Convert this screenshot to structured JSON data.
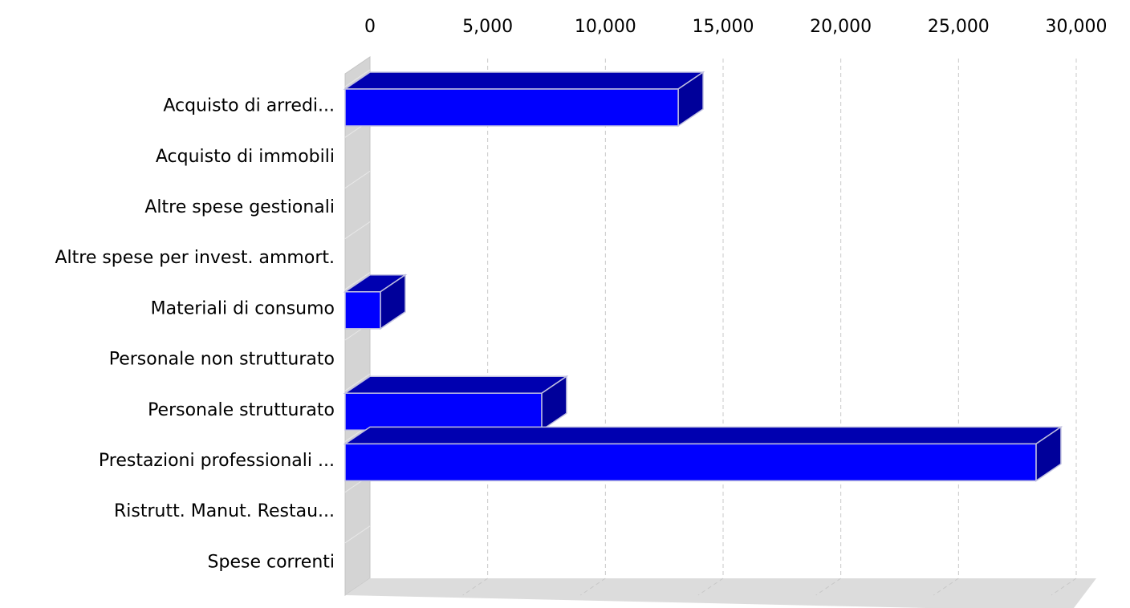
{
  "chart_data": {
    "type": "bar",
    "orientation": "horizontal",
    "style": "3d",
    "title": "",
    "xlabel": "",
    "ylabel": "",
    "categories": [
      "Acquisto di arredi...",
      "Acquisto di immobili",
      "Altre spese gestionali",
      "Altre spese per invest. ammort.",
      "Materiali di consumo",
      "Personale non strutturato",
      "Personale strutturato",
      "Prestazioni professionali ...",
      "Ristrutt. Manut. Restau...",
      "Spese correnti"
    ],
    "values": [
      14150,
      0,
      0,
      0,
      1500,
      0,
      8350,
      29350,
      0,
      0
    ],
    "xlim": [
      0,
      30000
    ],
    "ticks": [
      "0",
      "5,000",
      "10,000",
      "15,000",
      "20,000",
      "25,000",
      "30,000"
    ],
    "tick_values": [
      0,
      5000,
      10000,
      15000,
      20000,
      25000,
      30000
    ],
    "axis_position": "top",
    "grid": true,
    "legend": "none",
    "colors": {
      "bar_front": "#0000ff",
      "bar_top": "#0000b0",
      "bar_side": "#00009a",
      "bar_stroke": "#c0c0e0",
      "wall": "#d4d4d4",
      "floor": "#dcdcdc"
    }
  }
}
